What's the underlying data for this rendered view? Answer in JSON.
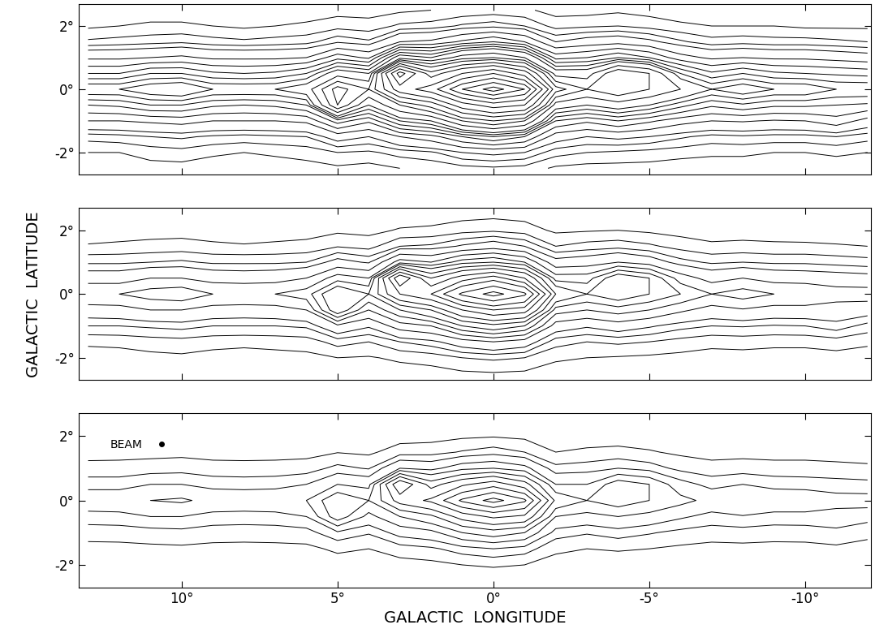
{
  "chart_data": [
    {
      "type": "contour",
      "color": "#000000",
      "tick_labels": "y",
      "x": [
        13,
        12,
        11,
        10,
        9,
        8,
        7,
        6,
        5,
        4,
        3,
        2,
        1,
        0,
        -1,
        -2,
        -3,
        -4,
        -5,
        -6,
        -7,
        -8,
        -9,
        -10,
        -11,
        -12
      ],
      "y": [
        -2.5,
        -2,
        -1.5,
        -1,
        -0.5,
        0,
        0.5,
        1,
        1.5,
        2,
        2.5
      ],
      "z": [
        [
          0.2,
          0.2,
          0.3,
          0.3,
          0.2,
          0.2,
          0.2,
          0.3,
          0.4,
          0.3,
          0.5,
          0.6,
          0.8,
          0.9,
          0.8,
          0.4,
          0.3,
          0.3,
          0.3,
          0.2,
          0.2,
          0.2,
          0.2,
          0.2,
          0.2,
          0.2
        ],
        [
          0.5,
          0.5,
          0.7,
          0.8,
          0.6,
          0.5,
          0.6,
          0.7,
          1,
          0.9,
          1.2,
          1.4,
          2,
          2.2,
          2,
          1.2,
          1,
          0.9,
          0.8,
          0.7,
          0.6,
          0.6,
          0.5,
          0.5,
          0.6,
          0.5
        ],
        [
          1.2,
          1.3,
          1.5,
          1.6,
          1.4,
          1.3,
          1.4,
          1.5,
          2.4,
          2,
          3,
          3.6,
          5,
          6,
          5,
          2.4,
          2,
          2.2,
          2,
          1.6,
          1.3,
          1.4,
          1.3,
          1.3,
          1.5,
          1.2
        ],
        [
          3,
          3,
          3.2,
          3.4,
          3,
          3,
          3,
          3.2,
          5.5,
          4.2,
          7,
          8,
          12,
          14,
          12,
          5,
          4.2,
          5,
          4.2,
          3.4,
          3,
          3.1,
          2.9,
          3,
          3.6,
          2.6
        ],
        [
          5,
          5.2,
          6,
          6,
          5.2,
          5,
          5.2,
          6,
          14,
          8,
          12,
          15,
          22,
          26,
          24,
          9,
          8,
          9,
          8,
          6.4,
          5.2,
          5.8,
          5.2,
          5.2,
          5,
          4.8
        ],
        [
          8,
          8,
          9,
          9.5,
          8,
          8,
          8,
          9,
          15,
          12,
          22,
          26,
          36,
          42,
          36,
          15,
          12,
          14,
          12,
          10,
          8,
          9,
          8,
          8,
          7,
          7
        ],
        [
          5,
          5,
          6,
          6,
          5.2,
          5,
          5.2,
          6,
          9,
          8,
          30,
          18,
          24,
          28,
          22,
          9,
          9,
          14,
          12,
          7,
          5.2,
          6,
          5.2,
          5,
          4.8,
          4.6
        ],
        [
          2.8,
          2.8,
          3,
          3.2,
          2.8,
          2.8,
          2.8,
          3,
          4.6,
          3.8,
          9,
          8,
          11,
          12,
          10,
          4.6,
          5,
          6,
          5,
          3.4,
          2.8,
          3,
          2.8,
          2.8,
          2.6,
          2.4
        ],
        [
          1.1,
          1.2,
          1.3,
          1.4,
          1.2,
          1.1,
          1.2,
          1.3,
          1.9,
          1.6,
          3,
          3.2,
          4.2,
          5,
          4,
          2,
          2.4,
          2.6,
          2.2,
          1.6,
          1.2,
          1.3,
          1.2,
          1.2,
          1.1,
          1
        ],
        [
          0.4,
          0.5,
          0.6,
          0.6,
          0.5,
          0.4,
          0.5,
          0.6,
          0.8,
          0.7,
          1.1,
          1.2,
          1.6,
          1.8,
          1.5,
          0.8,
          0.9,
          1,
          0.8,
          0.6,
          0.5,
          0.5,
          0.5,
          0.4,
          0.4,
          0.4
        ],
        [
          0.2,
          0.2,
          0.2,
          0.2,
          0.2,
          0.2,
          0.2,
          0.2,
          0.3,
          0.3,
          0.4,
          0.5,
          0.6,
          0.7,
          0.6,
          0.3,
          0.3,
          0.4,
          0.3,
          0.2,
          0.2,
          0.2,
          0.2,
          0.2,
          0.2,
          0.2
        ]
      ],
      "levels": [
        0.5,
        1,
        1.5,
        2,
        3,
        4,
        5,
        6,
        7,
        8,
        10,
        12,
        14,
        17,
        20,
        24,
        28,
        32,
        36,
        40
      ],
      "xlim": [
        13.3,
        -12.1
      ],
      "ylim": [
        -2.7,
        2.7
      ],
      "xticks": [
        {
          "value": 10,
          "label": "10°"
        },
        {
          "value": 5,
          "label": "5°"
        },
        {
          "value": 0,
          "label": "0°"
        },
        {
          "value": -5,
          "label": "-5°"
        },
        {
          "value": -10,
          "label": "-10°"
        }
      ],
      "yticks": [
        {
          "value": -2,
          "label": "-2°"
        },
        {
          "value": 0,
          "label": "0°"
        },
        {
          "value": 2,
          "label": "2°"
        }
      ]
    },
    {
      "type": "contour",
      "color": "#000000",
      "tick_labels": "y",
      "y_label": "GALACTIC  LATITUDE",
      "x": [
        13,
        12,
        11,
        10,
        9,
        8,
        7,
        6,
        5,
        4,
        3,
        2,
        1,
        0,
        -1,
        -2,
        -3,
        -4,
        -5,
        -6,
        -7,
        -8,
        -9,
        -10,
        -11,
        -12
      ],
      "y": [
        -2.5,
        -2,
        -1.5,
        -1,
        -0.5,
        0,
        0.5,
        1,
        1.5,
        2,
        2.5
      ],
      "z": [
        [
          0.2,
          0.2,
          0.3,
          0.3,
          0.2,
          0.2,
          0.2,
          0.3,
          0.4,
          0.3,
          0.5,
          0.6,
          0.8,
          0.9,
          0.8,
          0.4,
          0.3,
          0.3,
          0.3,
          0.2,
          0.2,
          0.2,
          0.2,
          0.2,
          0.2,
          0.2
        ],
        [
          0.5,
          0.5,
          0.7,
          0.8,
          0.6,
          0.5,
          0.6,
          0.7,
          1,
          0.9,
          1.2,
          1.4,
          2,
          2.2,
          2,
          1.2,
          1,
          0.9,
          0.8,
          0.7,
          0.6,
          0.6,
          0.5,
          0.5,
          0.6,
          0.5
        ],
        [
          1.2,
          1.3,
          1.5,
          1.6,
          1.4,
          1.3,
          1.4,
          1.5,
          2.4,
          2,
          3,
          3.6,
          5,
          6,
          5,
          2.4,
          2,
          2.2,
          2,
          1.6,
          1.3,
          1.4,
          1.3,
          1.3,
          1.5,
          1.2
        ],
        [
          3,
          3,
          3.2,
          3.4,
          3,
          3,
          3,
          3.2,
          5.5,
          4.2,
          7,
          8,
          12,
          14,
          12,
          5,
          4.2,
          5,
          4.2,
          3.4,
          3,
          3.1,
          2.9,
          3,
          3.6,
          2.6
        ],
        [
          5,
          5.2,
          6,
          6,
          5.2,
          5,
          5.2,
          6,
          14,
          8,
          12,
          15,
          22,
          26,
          24,
          9,
          8,
          9,
          8,
          6.4,
          5.2,
          5.8,
          5.2,
          5.2,
          5,
          4.8
        ],
        [
          8,
          8,
          9,
          9.5,
          8,
          8,
          8,
          9,
          15,
          12,
          22,
          26,
          36,
          42,
          36,
          15,
          12,
          14,
          12,
          10,
          8,
          9,
          8,
          8,
          7,
          7
        ],
        [
          5,
          5,
          6,
          6,
          5.2,
          5,
          5.2,
          6,
          9,
          8,
          30,
          18,
          24,
          28,
          22,
          9,
          9,
          14,
          12,
          7,
          5.2,
          6,
          5.2,
          5,
          4.8,
          4.6
        ],
        [
          2.8,
          2.8,
          3,
          3.2,
          2.8,
          2.8,
          2.8,
          3,
          4.6,
          3.8,
          9,
          8,
          11,
          12,
          10,
          4.6,
          5,
          6,
          5,
          3.4,
          2.8,
          3,
          2.8,
          2.8,
          2.6,
          2.4
        ],
        [
          1.1,
          1.2,
          1.3,
          1.4,
          1.2,
          1.1,
          1.2,
          1.3,
          1.9,
          1.6,
          3,
          3.2,
          4.2,
          5,
          4,
          2,
          2.4,
          2.6,
          2.2,
          1.6,
          1.2,
          1.3,
          1.2,
          1.2,
          1.1,
          1
        ],
        [
          0.4,
          0.5,
          0.6,
          0.6,
          0.5,
          0.4,
          0.5,
          0.6,
          0.8,
          0.7,
          1.1,
          1.2,
          1.6,
          1.8,
          1.5,
          0.8,
          0.9,
          1,
          0.8,
          0.6,
          0.5,
          0.5,
          0.5,
          0.4,
          0.4,
          0.4
        ],
        [
          0.2,
          0.2,
          0.2,
          0.2,
          0.2,
          0.2,
          0.2,
          0.2,
          0.3,
          0.3,
          0.4,
          0.5,
          0.6,
          0.7,
          0.6,
          0.3,
          0.3,
          0.4,
          0.3,
          0.2,
          0.2,
          0.2,
          0.2,
          0.2,
          0.2,
          0.2
        ]
      ],
      "levels": [
        1,
        2,
        3,
        4,
        6,
        8,
        10,
        12,
        15,
        18,
        22,
        26,
        30,
        35,
        40
      ],
      "xlim": [
        13.3,
        -12.1
      ],
      "ylim": [
        -2.7,
        2.7
      ],
      "xticks": [
        {
          "value": 10,
          "label": "10°"
        },
        {
          "value": 5,
          "label": "5°"
        },
        {
          "value": 0,
          "label": "0°"
        },
        {
          "value": -5,
          "label": "-5°"
        },
        {
          "value": -10,
          "label": "-10°"
        }
      ],
      "yticks": [
        {
          "value": -2,
          "label": "-2°"
        },
        {
          "value": 0,
          "label": "0°"
        },
        {
          "value": 2,
          "label": "2°"
        }
      ]
    },
    {
      "type": "contour",
      "color": "#000000",
      "x_label": "GALACTIC  LONGITUDE",
      "annotations": [
        "BEAM"
      ],
      "x": [
        13,
        12,
        11,
        10,
        9,
        8,
        7,
        6,
        5,
        4,
        3,
        2,
        1,
        0,
        -1,
        -2,
        -3,
        -4,
        -5,
        -6,
        -7,
        -8,
        -9,
        -10,
        -11,
        -12
      ],
      "y": [
        -2.5,
        -2,
        -1.5,
        -1,
        -0.5,
        0,
        0.5,
        1,
        1.5,
        2,
        2.5
      ],
      "z": [
        [
          0.2,
          0.2,
          0.3,
          0.3,
          0.2,
          0.2,
          0.2,
          0.3,
          0.4,
          0.3,
          0.5,
          0.6,
          0.8,
          0.9,
          0.8,
          0.4,
          0.3,
          0.3,
          0.3,
          0.2,
          0.2,
          0.2,
          0.2,
          0.2,
          0.2,
          0.2
        ],
        [
          0.5,
          0.5,
          0.7,
          0.8,
          0.6,
          0.5,
          0.6,
          0.7,
          1,
          0.9,
          1.2,
          1.4,
          2,
          2.2,
          2,
          1.2,
          1,
          0.9,
          0.8,
          0.7,
          0.6,
          0.6,
          0.5,
          0.5,
          0.6,
          0.5
        ],
        [
          1.2,
          1.3,
          1.5,
          1.6,
          1.4,
          1.3,
          1.4,
          1.5,
          2.4,
          2,
          3,
          3.6,
          5,
          6,
          5,
          2.4,
          2,
          2.2,
          2,
          1.6,
          1.3,
          1.4,
          1.3,
          1.3,
          1.5,
          1.2
        ],
        [
          3,
          3,
          3.2,
          3.4,
          3,
          3,
          3,
          3.2,
          5.5,
          4.2,
          7,
          8,
          12,
          14,
          12,
          5,
          4.2,
          5,
          4.2,
          3.4,
          3,
          3.1,
          2.9,
          3,
          3.6,
          2.6
        ],
        [
          5,
          5.2,
          6,
          6,
          5.2,
          5,
          5.2,
          6,
          14,
          8,
          12,
          15,
          22,
          26,
          24,
          9,
          8,
          9,
          8,
          6.4,
          5.2,
          5.8,
          5.2,
          5.2,
          5,
          4.8
        ],
        [
          8,
          8,
          9,
          9.5,
          8,
          8,
          8,
          9,
          15,
          12,
          22,
          26,
          36,
          42,
          36,
          15,
          12,
          14,
          12,
          10,
          8,
          9,
          8,
          8,
          7,
          7
        ],
        [
          5,
          5,
          6,
          6,
          5.2,
          5,
          5.2,
          6,
          9,
          8,
          30,
          18,
          24,
          28,
          22,
          9,
          9,
          14,
          12,
          7,
          5.2,
          6,
          5.2,
          5,
          4.8,
          4.6
        ],
        [
          2.8,
          2.8,
          3,
          3.2,
          2.8,
          2.8,
          2.8,
          3,
          4.6,
          3.8,
          9,
          8,
          11,
          12,
          10,
          4.6,
          5,
          6,
          5,
          3.4,
          2.8,
          3,
          2.8,
          2.8,
          2.6,
          2.4
        ],
        [
          1.1,
          1.2,
          1.3,
          1.4,
          1.2,
          1.1,
          1.2,
          1.3,
          1.9,
          1.6,
          3,
          3.2,
          4.2,
          5,
          4,
          2,
          2.4,
          2.6,
          2.2,
          1.6,
          1.2,
          1.3,
          1.2,
          1.2,
          1.1,
          1
        ],
        [
          0.4,
          0.5,
          0.6,
          0.6,
          0.5,
          0.4,
          0.5,
          0.6,
          0.8,
          0.7,
          1.1,
          1.2,
          1.6,
          1.8,
          1.5,
          0.8,
          0.9,
          1,
          0.8,
          0.6,
          0.5,
          0.5,
          0.5,
          0.4,
          0.4,
          0.4
        ],
        [
          0.2,
          0.2,
          0.2,
          0.2,
          0.2,
          0.2,
          0.2,
          0.2,
          0.3,
          0.3,
          0.4,
          0.5,
          0.6,
          0.7,
          0.6,
          0.3,
          0.3,
          0.4,
          0.3,
          0.2,
          0.2,
          0.2,
          0.2,
          0.2,
          0.2,
          0.2
        ]
      ],
      "levels": [
        2,
        4,
        6,
        9,
        12,
        16,
        20,
        25,
        30,
        35,
        40
      ],
      "xlim": [
        13.3,
        -12.1
      ],
      "ylim": [
        -2.7,
        2.7
      ],
      "xticks": [
        {
          "value": 10,
          "label": "10°"
        },
        {
          "value": 5,
          "label": "5°"
        },
        {
          "value": 0,
          "label": "0°"
        },
        {
          "value": -5,
          "label": "-5°"
        },
        {
          "value": -10,
          "label": "-10°"
        }
      ],
      "yticks": [
        {
          "value": -2,
          "label": "-2°"
        },
        {
          "value": 0,
          "label": "0°"
        },
        {
          "value": 2,
          "label": "2°"
        }
      ]
    }
  ]
}
